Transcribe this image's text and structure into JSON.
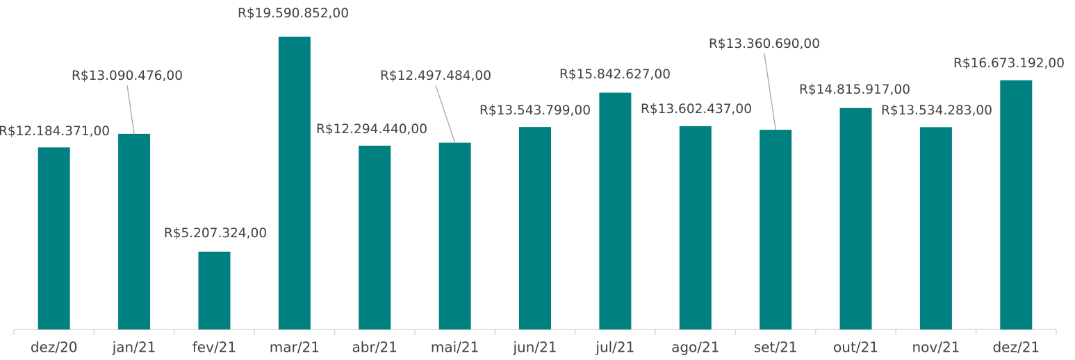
{
  "chart_data": {
    "type": "bar",
    "categories": [
      "dez/20",
      "jan/21",
      "fev/21",
      "mar/21",
      "abr/21",
      "mai/21",
      "jun/21",
      "jul/21",
      "ago/21",
      "set/21",
      "out/21",
      "nov/21",
      "dez/21"
    ],
    "values": [
      12184371,
      13090476,
      5207324,
      19590852,
      12294440,
      12497484,
      13543799,
      15842627,
      13602437,
      13360690,
      14815917,
      13534283,
      16673192
    ],
    "value_labels": [
      "R$12.184.371,00",
      "R$13.090.476,00",
      "R$5.207.324,00",
      "R$19.590.852,00",
      "R$12.294.440,00",
      "R$12.497.484,00",
      "R$13.543.799,00",
      "R$15.842.627,00",
      "R$13.602.437,00",
      "R$13.360.690,00",
      "R$14.815.917,00",
      "R$13.534.283,00",
      "R$16.673.192,00"
    ],
    "color": "#008080",
    "ylim": [
      0,
      20000000
    ]
  }
}
